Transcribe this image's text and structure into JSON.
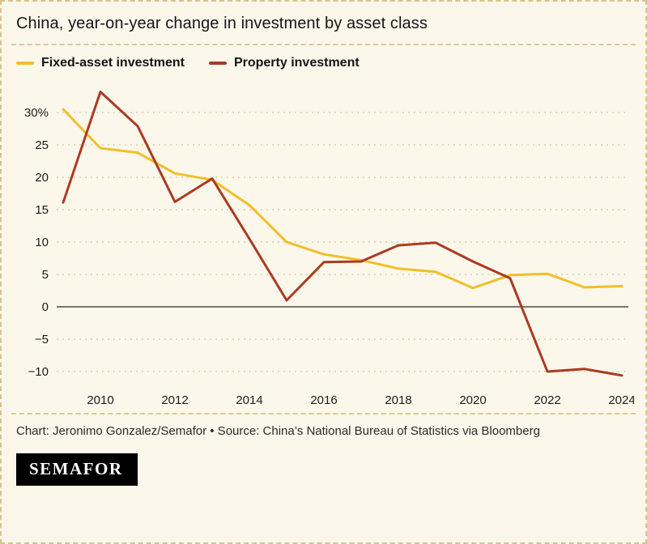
{
  "header": {
    "title": "China, year-on-year change in investment by asset class"
  },
  "chart_data": {
    "type": "line",
    "title": "China, year-on-year change in investment by asset class",
    "x": [
      2009,
      2010,
      2011,
      2012,
      2013,
      2014,
      2015,
      2016,
      2017,
      2018,
      2019,
      2020,
      2021,
      2022,
      2023,
      2024
    ],
    "series": [
      {
        "name": "Fixed-asset investment",
        "color": "#f1bf2a",
        "values": [
          30.5,
          24.5,
          23.8,
          20.6,
          19.6,
          15.7,
          10.0,
          8.1,
          7.2,
          5.9,
          5.4,
          2.9,
          4.9,
          5.1,
          3.0,
          3.2
        ]
      },
      {
        "name": "Property investment",
        "color": "#ab3a22",
        "values": [
          16.1,
          33.2,
          27.9,
          16.2,
          19.8,
          10.5,
          1.0,
          6.9,
          7.0,
          9.5,
          9.9,
          7.0,
          4.4,
          -10.0,
          -9.6,
          -10.6
        ]
      }
    ],
    "yticks": [
      30,
      25,
      20,
      15,
      10,
      5,
      0,
      -5,
      -10
    ],
    "ytick_labels": [
      "30%",
      "25",
      "20",
      "15",
      "10",
      "5",
      "0",
      "−5",
      "−10"
    ],
    "xticks": [
      2010,
      2012,
      2014,
      2016,
      2018,
      2020,
      2022,
      2024
    ],
    "xtick_labels": [
      "2010",
      "2012",
      "2014",
      "2016",
      "2018",
      "2020",
      "2022",
      "2024"
    ],
    "ylim": [
      -12,
      34
    ],
    "grid": "dashed horizontal",
    "zero_line": true,
    "legend_position": "top",
    "xlabel": "",
    "ylabel": ""
  },
  "footer": {
    "credit": "Chart: Jeronimo Gonzalez/Semafor • Source: China’s National Bureau of Statistics via Bloomberg"
  },
  "brand": {
    "logo_text": "SEMAFOR"
  }
}
